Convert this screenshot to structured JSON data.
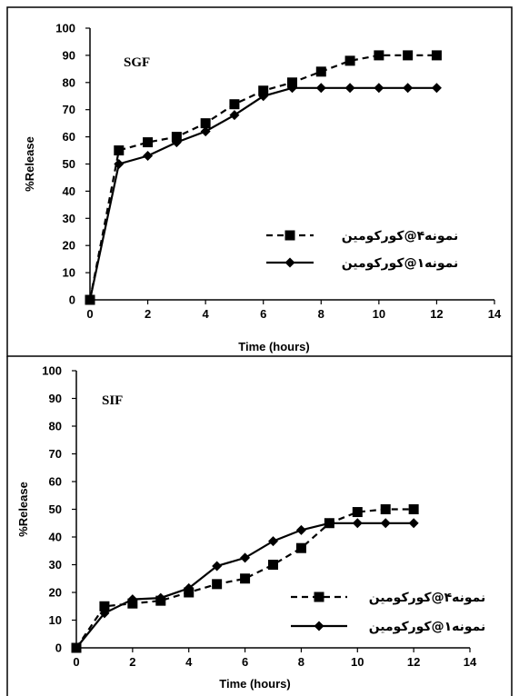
{
  "chart_data": [
    {
      "type": "line",
      "title": "SGF",
      "xlabel": "Time (hours)",
      "ylabel": "%Release",
      "xlim": [
        0,
        14
      ],
      "ylim": [
        0,
        100
      ],
      "xticks": [
        0,
        2,
        4,
        6,
        8,
        10,
        12,
        14
      ],
      "yticks": [
        0,
        10,
        20,
        30,
        40,
        50,
        60,
        70,
        80,
        90,
        100
      ],
      "legend_position": "center-right",
      "series": [
        {
          "name": "نمونه۴@کورکومین",
          "marker": "square",
          "line": "dashed",
          "x": [
            0,
            1,
            2,
            3,
            4,
            5,
            6,
            7,
            8,
            9,
            10,
            11,
            12
          ],
          "y": [
            0,
            55,
            58,
            60,
            65,
            72,
            77,
            80,
            84,
            88,
            90,
            90,
            90
          ]
        },
        {
          "name": "نمونه۱@کورکومین",
          "marker": "diamond",
          "line": "solid",
          "x": [
            0,
            1,
            2,
            3,
            4,
            5,
            6,
            7,
            8,
            9,
            10,
            11,
            12
          ],
          "y": [
            0,
            50,
            53,
            58,
            62,
            68,
            75,
            78,
            78,
            78,
            78,
            78,
            78
          ]
        }
      ]
    },
    {
      "type": "line",
      "title": "SIF",
      "xlabel": "Time (hours)",
      "ylabel": "%Release",
      "xlim": [
        0,
        14
      ],
      "ylim": [
        0,
        100
      ],
      "xticks": [
        0,
        2,
        4,
        6,
        8,
        10,
        12,
        14
      ],
      "yticks": [
        0,
        10,
        20,
        30,
        40,
        50,
        60,
        70,
        80,
        90,
        100
      ],
      "legend_position": "lower-right",
      "series": [
        {
          "name": "نمونه۴@کورکومین",
          "marker": "square",
          "line": "dashed",
          "x": [
            0,
            1,
            2,
            3,
            4,
            5,
            6,
            7,
            8,
            9,
            10,
            11,
            12
          ],
          "y": [
            0,
            15,
            16,
            17,
            20,
            23,
            25,
            30,
            36,
            45,
            49,
            50,
            50
          ]
        },
        {
          "name": "نمونه۱@کورکومین",
          "marker": "diamond",
          "line": "solid",
          "x": [
            0,
            1,
            2,
            3,
            4,
            5,
            6,
            7,
            8,
            9,
            10,
            11,
            12
          ],
          "y": [
            0,
            12.5,
            17.5,
            18,
            21.5,
            29.5,
            32.5,
            38.5,
            42.5,
            45,
            45,
            45,
            45
          ]
        }
      ]
    }
  ]
}
